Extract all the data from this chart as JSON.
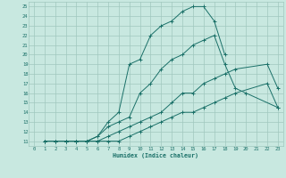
{
  "xlabel": "Humidex (Indice chaleur)",
  "bg_color": "#c8e8e0",
  "grid_color": "#a0c8be",
  "line_color": "#1a7068",
  "xlim": [
    -0.5,
    23.5
  ],
  "ylim": [
    10.5,
    25.5
  ],
  "xticks": [
    0,
    1,
    2,
    3,
    4,
    5,
    6,
    7,
    8,
    9,
    10,
    11,
    12,
    13,
    14,
    15,
    16,
    17,
    18,
    19,
    20,
    21,
    22,
    23
  ],
  "yticks": [
    11,
    12,
    13,
    14,
    15,
    16,
    17,
    18,
    19,
    20,
    21,
    22,
    23,
    24,
    25
  ],
  "curve_main_x": [
    3,
    4,
    5,
    6,
    7,
    8,
    9,
    10,
    11,
    12,
    13,
    14,
    15,
    16,
    17,
    18
  ],
  "curve_main_y": [
    11,
    11,
    11,
    11.5,
    13,
    14,
    19,
    19.5,
    22,
    23,
    23.5,
    24.5,
    25,
    25,
    23.5,
    20
  ],
  "curve_mid_x": [
    1,
    2,
    3,
    4,
    5,
    6,
    7,
    8,
    9,
    10,
    11,
    12,
    13,
    14,
    15,
    16,
    17,
    18,
    19,
    20,
    23
  ],
  "curve_mid_y": [
    11,
    11,
    11,
    11,
    11,
    11.5,
    12.5,
    13,
    13.5,
    16,
    17,
    18.5,
    19.5,
    20,
    21,
    21.5,
    22,
    19,
    16.5,
    16,
    14.5
  ],
  "curve_low1_x": [
    1,
    2,
    3,
    4,
    5,
    6,
    7,
    8,
    9,
    10,
    11,
    12,
    13,
    14,
    15,
    16,
    17,
    18,
    19,
    22,
    23
  ],
  "curve_low1_y": [
    11,
    11,
    11,
    11,
    11,
    11,
    11.5,
    12,
    12.5,
    13,
    13.5,
    14,
    15,
    16,
    16,
    17,
    17.5,
    18,
    18.5,
    19,
    16.5
  ],
  "curve_low2_x": [
    1,
    2,
    3,
    4,
    5,
    6,
    7,
    8,
    9,
    10,
    11,
    12,
    13,
    14,
    15,
    16,
    17,
    18,
    19,
    22,
    23
  ],
  "curve_low2_y": [
    11,
    11,
    11,
    11,
    11,
    11,
    11,
    11,
    11.5,
    12,
    12.5,
    13,
    13.5,
    14,
    14,
    14.5,
    15,
    15.5,
    16,
    17,
    14.5
  ]
}
